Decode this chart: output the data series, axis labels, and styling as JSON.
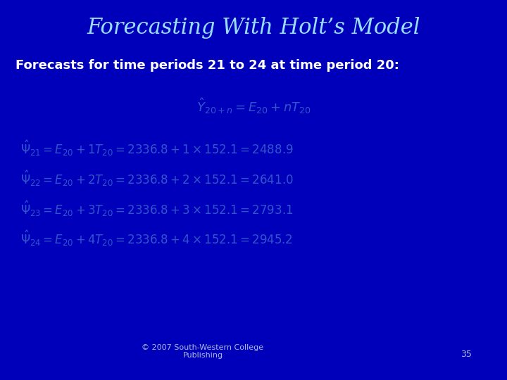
{
  "bg_color": "#0000BB",
  "title": "Forecasting With Holt’s Model",
  "title_color": "#99DDFF",
  "title_fontsize": 22,
  "subtitle": "Forecasts for time periods 21 to 24 at time period 20:",
  "subtitle_color": "#FFFFFF",
  "subtitle_fontsize": 13,
  "formula_color": "#3355CC",
  "footer_text": "© 2007 South-Western College\nPublishing",
  "footer_color": "#AABBDD",
  "page_number": "35",
  "page_color": "#AABBDD",
  "general_formula_fontsize": 13,
  "eq_fontsize": 12
}
